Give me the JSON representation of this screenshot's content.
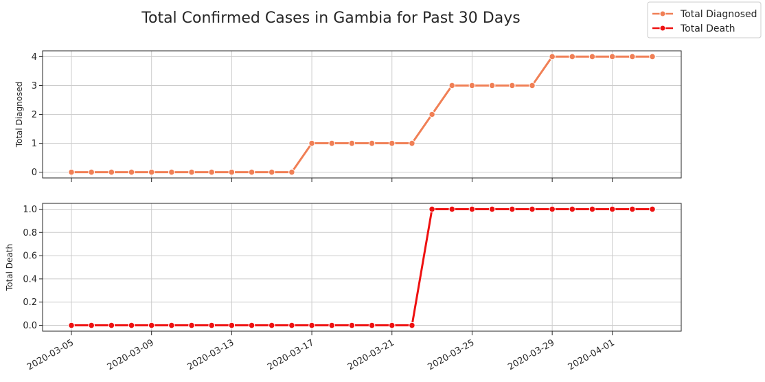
{
  "chart_data": {
    "title": "Total Confirmed Cases in Gambia for Past 30 Days",
    "type": "line",
    "legend": {
      "placement": "top-right",
      "entries": [
        "Total Diagnosed",
        "Total Death"
      ]
    },
    "x_dates": [
      "2020-03-05",
      "2020-03-06",
      "2020-03-07",
      "2020-03-08",
      "2020-03-09",
      "2020-03-10",
      "2020-03-11",
      "2020-03-12",
      "2020-03-13",
      "2020-03-14",
      "2020-03-15",
      "2020-03-16",
      "2020-03-17",
      "2020-03-18",
      "2020-03-19",
      "2020-03-20",
      "2020-03-21",
      "2020-03-22",
      "2020-03-23",
      "2020-03-24",
      "2020-03-25",
      "2020-03-26",
      "2020-03-27",
      "2020-03-28",
      "2020-03-29",
      "2020-03-30",
      "2020-03-31",
      "2020-04-01",
      "2020-04-02",
      "2020-04-03"
    ],
    "x_tick_labels": [
      "2020-03-05",
      "2020-03-09",
      "2020-03-13",
      "2020-03-17",
      "2020-03-21",
      "2020-03-25",
      "2020-03-29",
      "2020-04-01"
    ],
    "grid": true,
    "panels": [
      {
        "name": "Total Diagnosed",
        "ylabel": "Total Diagnosed",
        "ylim": [
          -0.2,
          4.2
        ],
        "yticks": [
          "0",
          "1",
          "2",
          "3",
          "4"
        ],
        "color": "#f07f55",
        "values": [
          0,
          0,
          0,
          0,
          0,
          0,
          0,
          0,
          0,
          0,
          0,
          0,
          1,
          1,
          1,
          1,
          1,
          1,
          2,
          3,
          3,
          3,
          3,
          3,
          4,
          4,
          4,
          4,
          4,
          4
        ]
      },
      {
        "name": "Total Death",
        "ylabel": "Total Death",
        "ylim": [
          -0.05,
          1.05
        ],
        "yticks": [
          "0.0",
          "0.2",
          "0.4",
          "0.6",
          "0.8",
          "1.0"
        ],
        "color": "#ee1111",
        "values": [
          0,
          0,
          0,
          0,
          0,
          0,
          0,
          0,
          0,
          0,
          0,
          0,
          0,
          0,
          0,
          0,
          0,
          0,
          1,
          1,
          1,
          1,
          1,
          1,
          1,
          1,
          1,
          1,
          1,
          1
        ]
      }
    ]
  }
}
